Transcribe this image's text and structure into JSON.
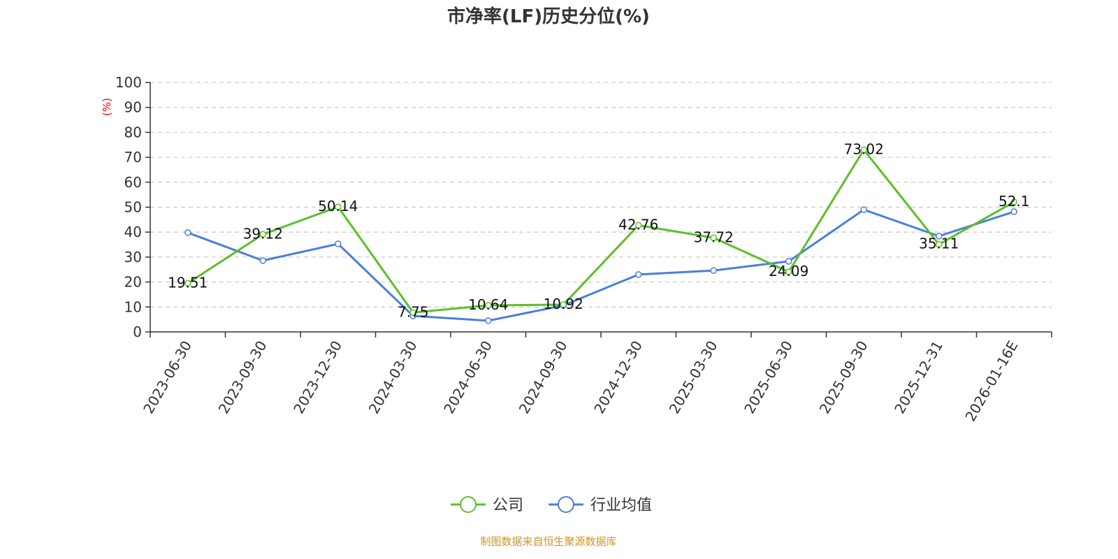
{
  "chart_data": {
    "type": "line",
    "title": "市净率(LF)历史分位(%)",
    "ylabel": "(%)",
    "ylim": [
      0,
      100
    ],
    "yticks": [
      0,
      10,
      20,
      30,
      40,
      50,
      60,
      70,
      80,
      90,
      100
    ],
    "grid": true,
    "legend_position": "bottom",
    "categories": [
      "2023-06-30",
      "2023-09-30",
      "2023-12-30",
      "2024-03-30",
      "2024-06-30",
      "2024-09-30",
      "2024-12-30",
      "2025-03-30",
      "2025-06-30",
      "2025-09-30",
      "2025-12-31",
      "2026-01-16E"
    ],
    "series": [
      {
        "name": "公司",
        "color": "#5cbf2a",
        "show_labels": true,
        "values": [
          19.51,
          39.12,
          50.14,
          7.75,
          10.64,
          10.92,
          42.76,
          37.72,
          24.09,
          73.02,
          35.11,
          52.1
        ]
      },
      {
        "name": "行业均值",
        "color": "#4a7fdc",
        "show_labels": false,
        "values": [
          39.8,
          28.6,
          35.3,
          6.4,
          4.5,
          10.6,
          23.0,
          24.6,
          28.3,
          49.0,
          38.4,
          48.2
        ]
      }
    ],
    "source": "制图数据来自恒生聚源数据库"
  }
}
